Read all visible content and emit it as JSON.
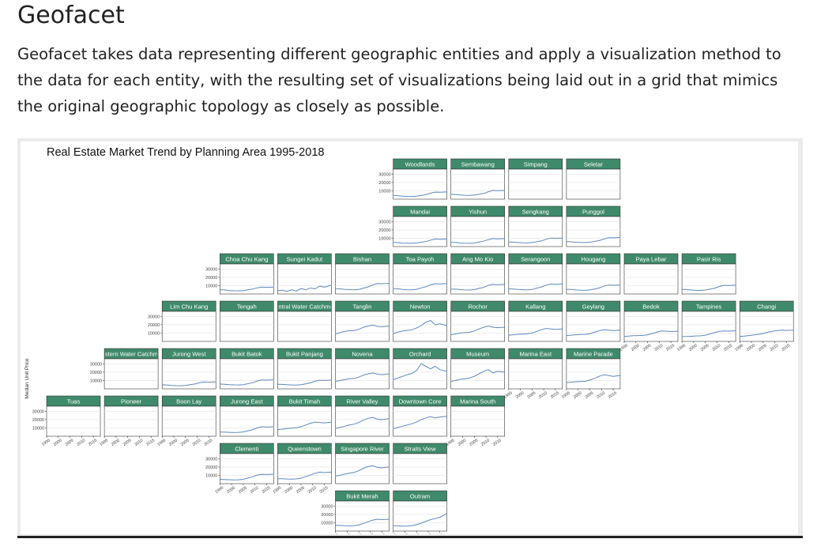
{
  "page": {
    "heading": "Geofacet",
    "intro": "Geofacet takes data representing different geographic entities and apply a visualization method to the data for each entity, with the resulting set of visualizations being laid out in a grid that mimics the original geographic topology as closely as possible."
  },
  "chart_data": {
    "type": "line",
    "title": "Real Estate Market Trend by Planning Area 1995-2018",
    "ylabel": "Median Unit Price",
    "xlabel": "",
    "x_ticks": [
      "1995",
      "2000",
      "2005",
      "2010",
      "2015"
    ],
    "y_ticks": [
      10000,
      20000,
      30000
    ],
    "xlim": [
      1995,
      2018
    ],
    "ylim": [
      0,
      36000
    ],
    "grid": true,
    "colors": {
      "line": "#5b8ac0",
      "strip": "#3f8a6b",
      "strip_text": "#ffffff"
    },
    "years": [
      1995,
      1997,
      1999,
      2001,
      2003,
      2005,
      2007,
      2009,
      2011,
      2013,
      2015,
      2018
    ],
    "facets": [
      {
        "name": "Woodlands",
        "row": 0,
        "col": 6,
        "values": [
          4500,
          4200,
          3600,
          3300,
          3200,
          3600,
          4400,
          5400,
          7200,
          8400,
          8200,
          8600
        ]
      },
      {
        "name": "Sembawang",
        "row": 0,
        "col": 7,
        "values": [
          6000,
          5600,
          5000,
          4600,
          4500,
          4900,
          5800,
          6800,
          8800,
          10500,
          10200,
          10400
        ]
      },
      {
        "name": "Simpang",
        "row": 0,
        "col": 8,
        "values": []
      },
      {
        "name": "Seletar",
        "row": 0,
        "col": 9,
        "values": []
      },
      {
        "name": "Mandai",
        "row": 1,
        "col": 6,
        "values": [
          5000,
          4700,
          4200,
          4000,
          3900,
          4300,
          5200,
          6100,
          7800,
          9100,
          8800,
          9200
        ]
      },
      {
        "name": "Yishun",
        "row": 1,
        "col": 7,
        "values": [
          5200,
          4900,
          4300,
          4000,
          3900,
          4300,
          5400,
          6400,
          8300,
          9600,
          9300,
          9600
        ]
      },
      {
        "name": "Sengkang",
        "row": 1,
        "col": 8,
        "values": [
          5500,
          5300,
          4800,
          4500,
          4400,
          4800,
          5800,
          6800,
          8700,
          10200,
          9900,
          10200
        ]
      },
      {
        "name": "Punggol",
        "row": 1,
        "col": 9,
        "values": [
          6000,
          5700,
          5200,
          4900,
          4800,
          5200,
          6200,
          7200,
          9000,
          10600,
          10400,
          11000
        ]
      },
      {
        "name": "Choa Chu Kang",
        "row": 2,
        "col": 3,
        "values": [
          5000,
          4800,
          4200,
          3900,
          3800,
          4100,
          5000,
          5900,
          7400,
          8300,
          8000,
          8200
        ]
      },
      {
        "name": "Sungei Kadut",
        "row": 2,
        "col": 4,
        "values": [
          4000,
          4500,
          3200,
          5000,
          3500,
          6500,
          4800,
          7200,
          6200,
          9500,
          8200,
          10500
        ]
      },
      {
        "name": "Bishan",
        "row": 2,
        "col": 5,
        "values": [
          6500,
          6200,
          5600,
          5200,
          5000,
          5500,
          7000,
          8500,
          11000,
          12500,
          12300,
          12800
        ]
      },
      {
        "name": "Toa Payoh",
        "row": 2,
        "col": 6,
        "values": [
          6500,
          6200,
          5500,
          5100,
          5000,
          5600,
          7300,
          8700,
          11000,
          12300,
          12000,
          12500
        ]
      },
      {
        "name": "Ang Mo Kio",
        "row": 2,
        "col": 7,
        "values": [
          6000,
          5800,
          5200,
          4800,
          4700,
          5200,
          6700,
          8000,
          10300,
          11600,
          11200,
          11700
        ]
      },
      {
        "name": "Serangoon",
        "row": 2,
        "col": 8,
        "values": [
          6200,
          6000,
          5400,
          5000,
          4900,
          5400,
          7000,
          8400,
          10600,
          12000,
          11700,
          12100
        ]
      },
      {
        "name": "Hougang",
        "row": 2,
        "col": 9,
        "values": [
          5600,
          5400,
          4800,
          4500,
          4400,
          4800,
          6000,
          7200,
          9300,
          10700,
          10400,
          10800
        ]
      },
      {
        "name": "Paya Lebar",
        "row": 2,
        "col": 10,
        "values": []
      },
      {
        "name": "Pasir Ris",
        "row": 2,
        "col": 11,
        "values": [
          5500,
          5300,
          4700,
          4400,
          4300,
          4700,
          5800,
          7000,
          9000,
          10400,
          10200,
          10500
        ]
      },
      {
        "name": "Lim Chu Kang",
        "row": 3,
        "col": 2,
        "values": []
      },
      {
        "name": "Tengah",
        "row": 3,
        "col": 3,
        "values": []
      },
      {
        "name": "Central Water Catchment",
        "row": 3,
        "col": 4,
        "values": []
      },
      {
        "name": "Tanglin",
        "row": 3,
        "col": 5,
        "values": [
          9000,
          10500,
          12000,
          12800,
          13000,
          14500,
          17000,
          18500,
          19500,
          18000,
          17500,
          18500
        ]
      },
      {
        "name": "Newton",
        "row": 3,
        "col": 6,
        "values": [
          9500,
          11000,
          12500,
          13000,
          14000,
          16000,
          19000,
          23000,
          25000,
          20000,
          21000,
          19000
        ]
      },
      {
        "name": "Rochor",
        "row": 3,
        "col": 7,
        "values": [
          8000,
          9000,
          10000,
          10500,
          11000,
          12500,
          15000,
          17000,
          18500,
          17000,
          16500,
          17000
        ]
      },
      {
        "name": "Kallang",
        "row": 3,
        "col": 8,
        "values": [
          7500,
          8000,
          8500,
          8800,
          9000,
          10000,
          12000,
          14000,
          15500,
          15000,
          14500,
          15000
        ]
      },
      {
        "name": "Geylang",
        "row": 3,
        "col": 9,
        "values": [
          7000,
          7500,
          8000,
          8200,
          8400,
          9300,
          11000,
          12800,
          14000,
          13500,
          13000,
          13500
        ]
      },
      {
        "name": "Bedok",
        "row": 3,
        "col": 10,
        "values": [
          6000,
          6300,
          6800,
          7000,
          7200,
          8000,
          9500,
          11000,
          12500,
          12200,
          11800,
          12200
        ]
      },
      {
        "name": "Tampines",
        "row": 3,
        "col": 11,
        "values": [
          5800,
          5900,
          6200,
          6500,
          6700,
          7500,
          9000,
          10500,
          12000,
          12500,
          12300,
          12800
        ]
      },
      {
        "name": "Changi",
        "row": 3,
        "col": 12,
        "values": [
          6000,
          6300,
          7000,
          7800,
          8500,
          9500,
          11000,
          12200,
          13000,
          13500,
          13200,
          13500
        ]
      },
      {
        "name": "Western Water Catchment",
        "row": 4,
        "col": 1,
        "values": []
      },
      {
        "name": "Jurong West",
        "row": 4,
        "col": 2,
        "values": [
          4800,
          4600,
          4100,
          3800,
          3700,
          4000,
          4900,
          5800,
          7300,
          8200,
          8000,
          8300
        ]
      },
      {
        "name": "Bukit Batok",
        "row": 4,
        "col": 3,
        "values": [
          5800,
          5500,
          5000,
          4700,
          4600,
          5000,
          6200,
          7400,
          9400,
          10700,
          10400,
          10800
        ]
      },
      {
        "name": "Bukit Panjang",
        "row": 4,
        "col": 4,
        "values": [
          5400,
          5300,
          4900,
          4600,
          4500,
          4900,
          6000,
          7200,
          9100,
          10300,
          10000,
          10400
        ]
      },
      {
        "name": "Novena",
        "row": 4,
        "col": 5,
        "values": [
          9000,
          10000,
          11000,
          12000,
          12500,
          14000,
          16500,
          18000,
          19000,
          17500,
          17000,
          18000
        ]
      },
      {
        "name": "Orchard",
        "row": 4,
        "col": 6,
        "values": [
          11000,
          13000,
          15000,
          17000,
          18500,
          22000,
          30000,
          27000,
          24000,
          27000,
          23000,
          21000
        ]
      },
      {
        "name": "Museum",
        "row": 4,
        "col": 7,
        "values": [
          9000,
          10000,
          11500,
          12000,
          13000,
          15000,
          18000,
          21000,
          23000,
          19000,
          21000,
          20000
        ]
      },
      {
        "name": "Marina East",
        "row": 4,
        "col": 8,
        "values": []
      },
      {
        "name": "Marine Parade",
        "row": 4,
        "col": 9,
        "values": [
          7500,
          8000,
          8500,
          8800,
          9000,
          10500,
          12500,
          15000,
          17000,
          16000,
          15000,
          16000
        ]
      },
      {
        "name": "Tuas",
        "row": 5,
        "col": 0,
        "values": []
      },
      {
        "name": "Pioneer",
        "row": 5,
        "col": 1,
        "values": []
      },
      {
        "name": "Boon Lay",
        "row": 5,
        "col": 2,
        "values": []
      },
      {
        "name": "Jurong East",
        "row": 5,
        "col": 3,
        "values": [
          5000,
          4900,
          4600,
          4500,
          4600,
          5200,
          6500,
          8000,
          10000,
          11500,
          11000,
          11500
        ]
      },
      {
        "name": "Bukit Timah",
        "row": 5,
        "col": 4,
        "values": [
          8000,
          8500,
          9200,
          9800,
          10200,
          11500,
          13500,
          15500,
          17000,
          16500,
          16000,
          17000
        ]
      },
      {
        "name": "River Valley",
        "row": 5,
        "col": 5,
        "values": [
          9500,
          10500,
          12000,
          13500,
          14500,
          16500,
          19500,
          21500,
          22500,
          20500,
          20000,
          21000
        ]
      },
      {
        "name": "Downtown Core",
        "row": 5,
        "col": 6,
        "values": [
          9000,
          10500,
          12000,
          13500,
          15000,
          17000,
          20000,
          22000,
          23500,
          22000,
          23000,
          24000
        ]
      },
      {
        "name": "Marina South",
        "row": 5,
        "col": 7,
        "values": []
      },
      {
        "name": "Clementi",
        "row": 6,
        "col": 3,
        "values": [
          5200,
          5000,
          4700,
          4500,
          4600,
          5300,
          6700,
          8200,
          10300,
          11300,
          11000,
          11400
        ]
      },
      {
        "name": "Queenstown",
        "row": 6,
        "col": 4,
        "values": [
          6000,
          5900,
          5600,
          5500,
          5700,
          6600,
          8300,
          10200,
          12500,
          13800,
          13300,
          13800
        ]
      },
      {
        "name": "Singapore River",
        "row": 6,
        "col": 5,
        "values": [
          9000,
          10000,
          11500,
          12500,
          13500,
          15500,
          18500,
          20500,
          21500,
          19500,
          19000,
          20000
        ]
      },
      {
        "name": "Straits View",
        "row": 6,
        "col": 6,
        "values": []
      },
      {
        "name": "Bukit Merah",
        "row": 7,
        "col": 5,
        "values": [
          7000,
          6800,
          6400,
          6300,
          6500,
          7400,
          9200,
          11200,
          13200,
          14200,
          13700,
          14200
        ]
      },
      {
        "name": "Outram",
        "row": 7,
        "col": 6,
        "values": [
          6500,
          6300,
          6000,
          6100,
          6600,
          7700,
          9500,
          11700,
          13700,
          15000,
          16500,
          21000
        ]
      }
    ]
  }
}
